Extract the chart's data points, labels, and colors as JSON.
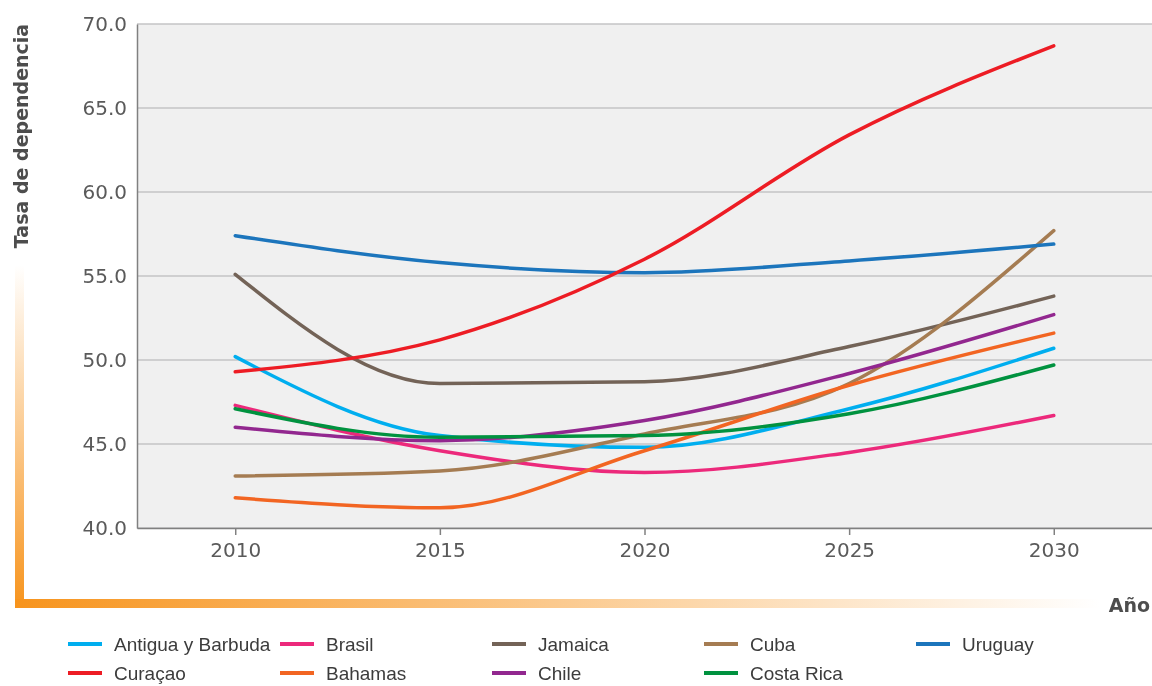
{
  "chart_data": {
    "type": "line",
    "xlabel": "Año",
    "ylabel": "Tasa de dependencia",
    "x": [
      2010,
      2015,
      2020,
      2025,
      2030
    ],
    "xlim": [
      2007.6,
      2032.4
    ],
    "xticks": [
      2010,
      2015,
      2020,
      2025,
      2030
    ],
    "ylim": [
      40,
      70
    ],
    "yticks": [
      {
        "value": 40,
        "label": "40.0"
      },
      {
        "value": 45,
        "label": "45.0"
      },
      {
        "value": 50,
        "label": "50.0"
      },
      {
        "value": 55,
        "label": "55.0"
      },
      {
        "value": 60,
        "label": "60.0"
      },
      {
        "value": 65,
        "label": "65.0"
      },
      {
        "value": 70,
        "label": "70.0"
      }
    ],
    "grid": "y",
    "legend": "bottom",
    "series": [
      {
        "name": "Antigua y Barbuda",
        "color": "#00aeef",
        "values": [
          50.2,
          45.5,
          44.8,
          47.1,
          50.7
        ]
      },
      {
        "name": "Brasil",
        "color": "#ec297b",
        "values": [
          47.3,
          44.6,
          43.3,
          44.5,
          46.7
        ]
      },
      {
        "name": "Jamaica",
        "color": "#736357",
        "values": [
          55.1,
          48.6,
          48.7,
          50.8,
          53.8
        ]
      },
      {
        "name": "Cuba",
        "color": "#a57c52",
        "values": [
          43.1,
          43.4,
          45.6,
          48.6,
          57.7
        ]
      },
      {
        "name": "Uruguay",
        "color": "#1c75bc",
        "values": [
          57.4,
          55.8,
          55.2,
          55.9,
          56.9
        ]
      },
      {
        "name": "Curaçao",
        "color": "#ed1c24",
        "values": [
          49.3,
          51.2,
          56.0,
          63.4,
          68.7
        ]
      },
      {
        "name": "Bahamas",
        "color": "#f26522",
        "values": [
          41.8,
          41.2,
          44.6,
          48.5,
          51.6
        ]
      },
      {
        "name": "Chile",
        "color": "#92278f",
        "values": [
          46.0,
          45.2,
          46.4,
          49.2,
          52.7
        ]
      },
      {
        "name": "Costa Rica",
        "color": "#00923f",
        "values": [
          47.1,
          45.4,
          45.5,
          46.8,
          49.7
        ]
      }
    ]
  }
}
